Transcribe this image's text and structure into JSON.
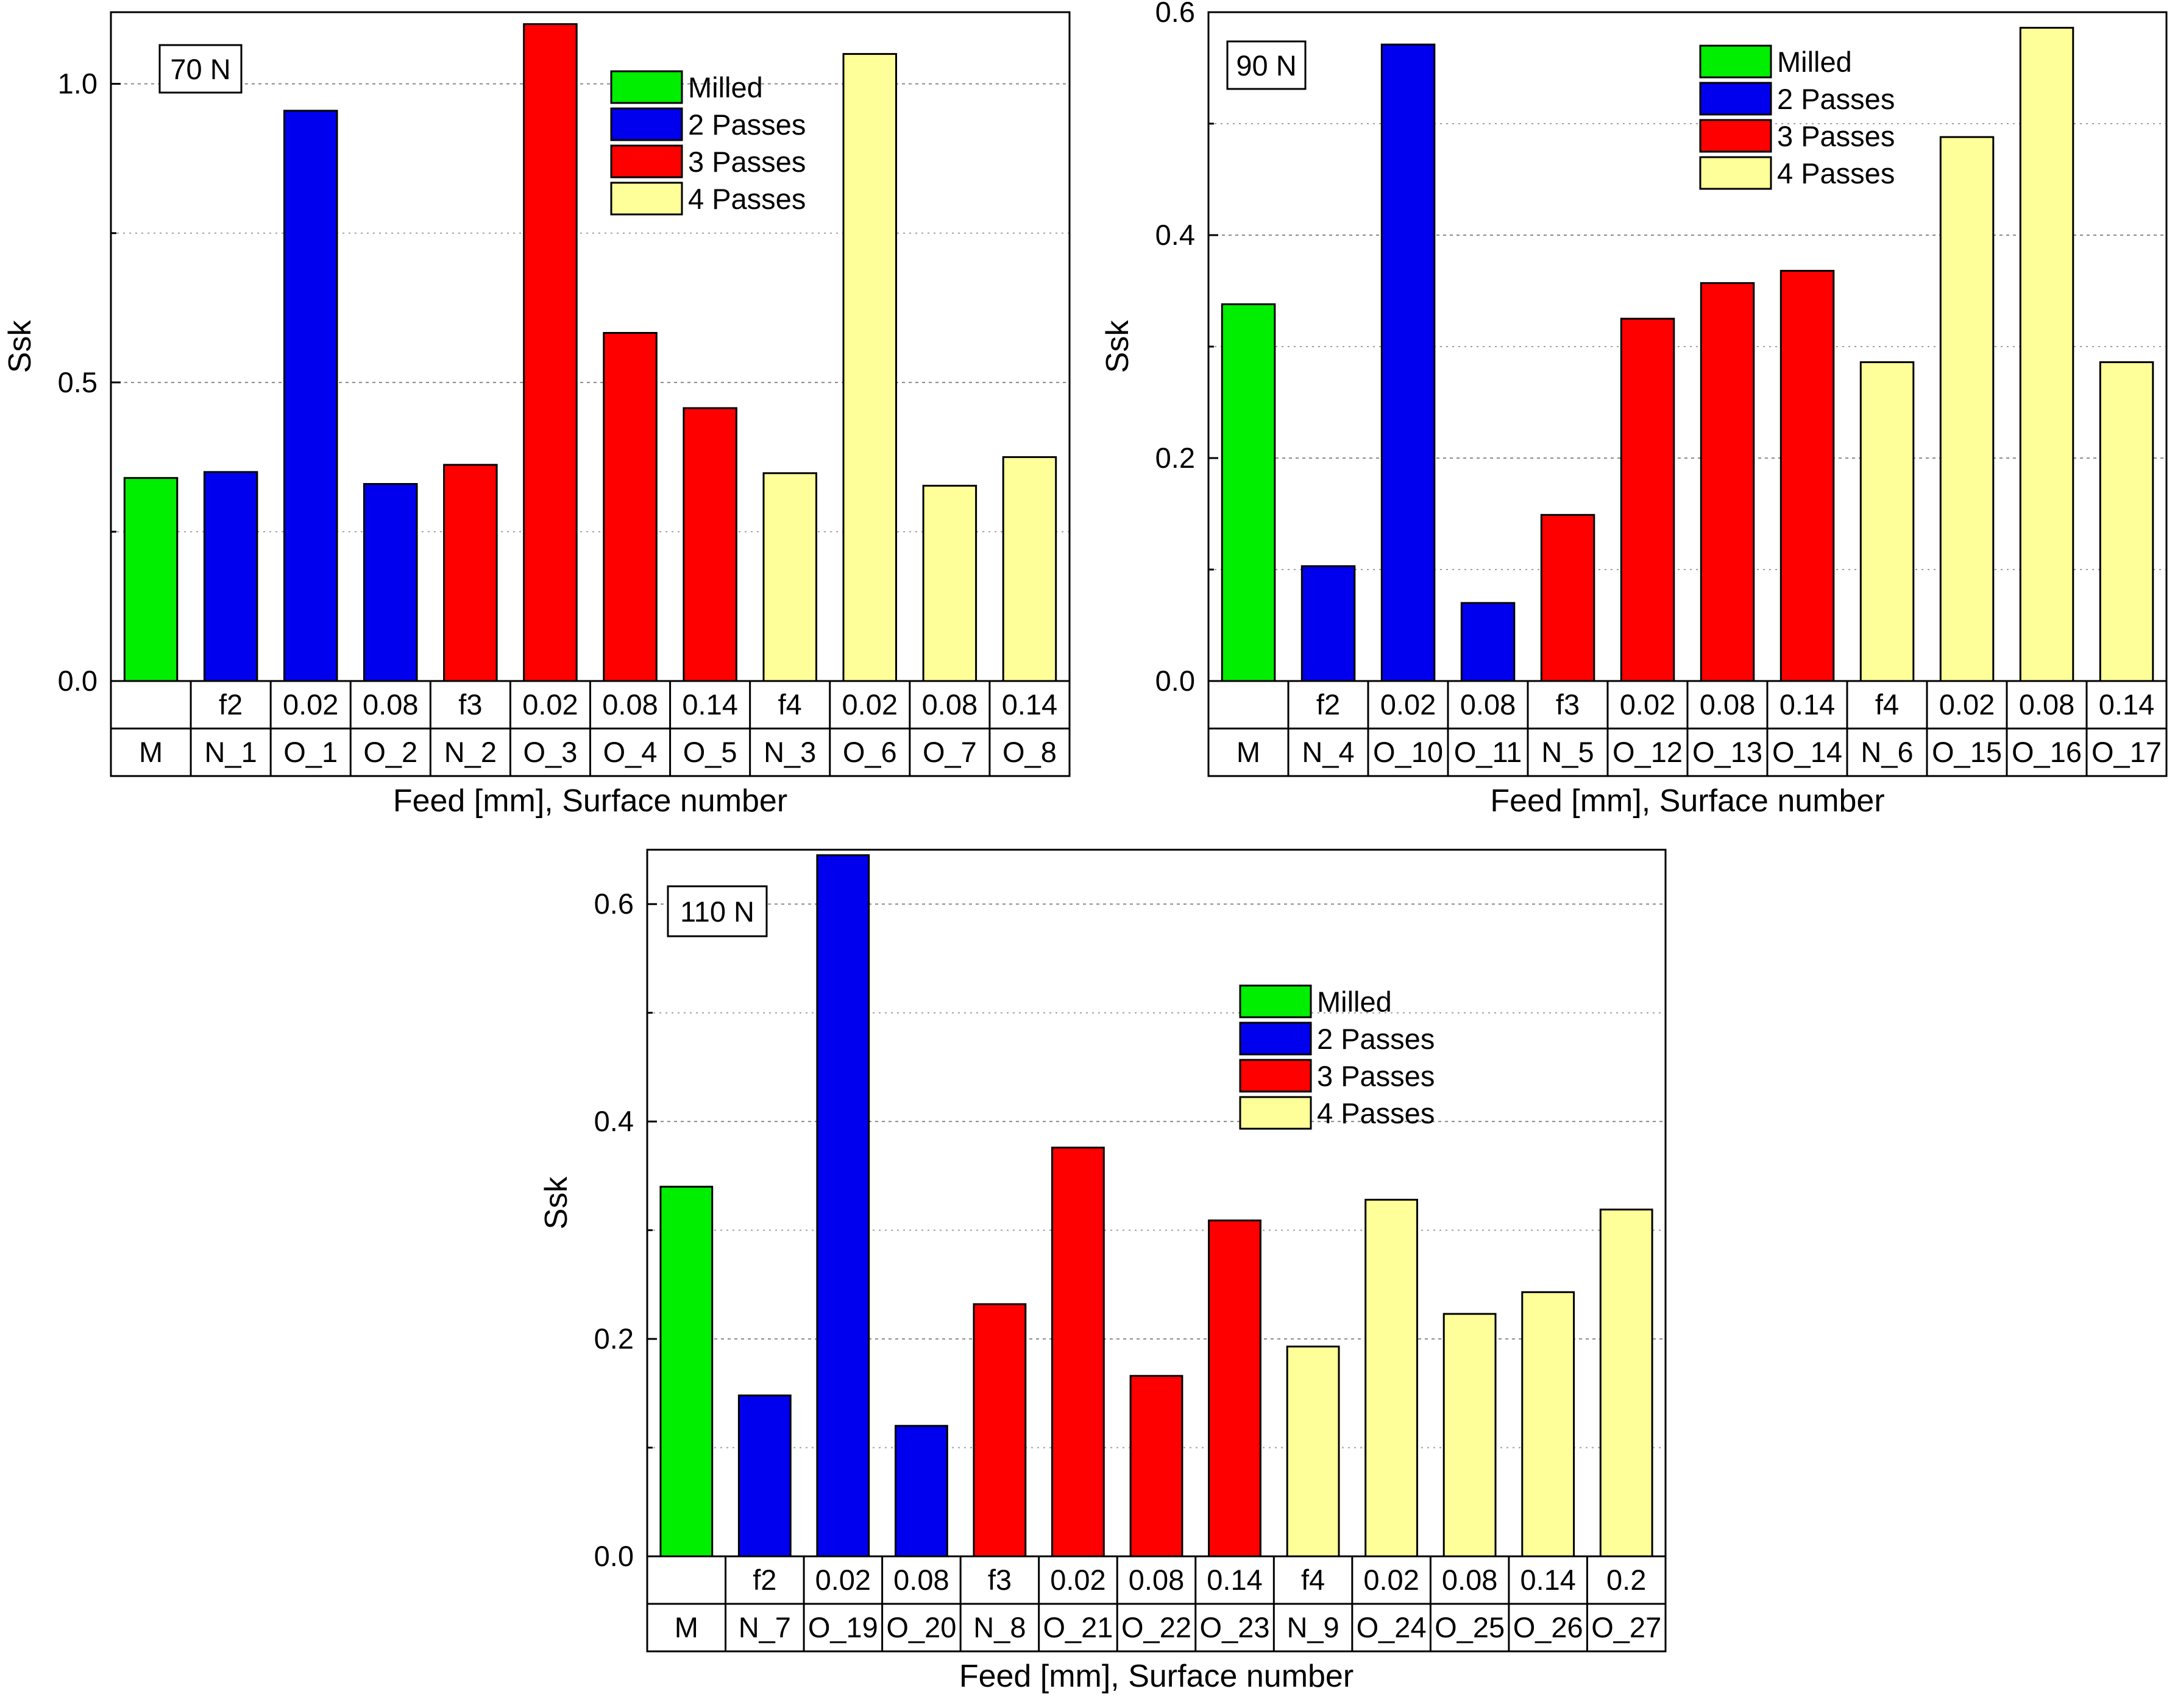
{
  "colors": {
    "Milled": "#00ee00",
    "2 Passes": "#0000ee",
    "3 Passes": "#ff0000",
    "4 Passes": "#ffff99"
  },
  "chart_data": [
    {
      "type": "bar",
      "title": "70 N",
      "ylabel": "Ssk",
      "xlabel": "Feed [mm], Surface number",
      "ylim": [
        0,
        1.12
      ],
      "yticks": [
        "0.0",
        "0.5",
        "1.0"
      ],
      "legend": [
        "Milled",
        "2 Passes",
        "3 Passes",
        "4 Passes"
      ],
      "legend_position": "top-right",
      "feed_labels": [
        "",
        "f2",
        "0.02",
        "0.08",
        "f3",
        "0.02",
        "0.08",
        "0.14",
        "f4",
        "0.02",
        "0.08",
        "0.14"
      ],
      "categories": [
        "M",
        "N_1",
        "O_1",
        "O_2",
        "N_2",
        "O_3",
        "O_4",
        "O_5",
        "N_3",
        "O_6",
        "O_7",
        "O_8"
      ],
      "groups": [
        "Milled",
        "2 Passes",
        "2 Passes",
        "2 Passes",
        "3 Passes",
        "3 Passes",
        "3 Passes",
        "3 Passes",
        "4 Passes",
        "4 Passes",
        "4 Passes",
        "4 Passes"
      ],
      "values": [
        0.34,
        0.35,
        0.955,
        0.33,
        0.362,
        1.1,
        0.583,
        0.457,
        0.348,
        1.05,
        0.327,
        0.375
      ]
    },
    {
      "type": "bar",
      "title": "90 N",
      "ylabel": "Ssk",
      "xlabel": "Feed [mm], Surface number",
      "ylim": [
        0,
        0.6
      ],
      "yticks": [
        "0.0",
        "0.2",
        "0.4",
        "0.6"
      ],
      "legend": [
        "Milled",
        "2 Passes",
        "3 Passes",
        "4 Passes"
      ],
      "legend_position": "top-right",
      "feed_labels": [
        "",
        "f2",
        "0.02",
        "0.08",
        "f3",
        "0.02",
        "0.08",
        "0.14",
        "f4",
        "0.02",
        "0.08",
        "0.14"
      ],
      "categories": [
        "M",
        "N_4",
        "O_10",
        "O_11",
        "N_5",
        "O_12",
        "O_13",
        "O_14",
        "N_6",
        "O_15",
        "O_16",
        "O_17"
      ],
      "groups": [
        "Milled",
        "2 Passes",
        "2 Passes",
        "2 Passes",
        "3 Passes",
        "3 Passes",
        "3 Passes",
        "3 Passes",
        "4 Passes",
        "4 Passes",
        "4 Passes",
        "4 Passes"
      ],
      "values": [
        0.338,
        0.103,
        0.571,
        0.07,
        0.149,
        0.325,
        0.357,
        0.368,
        0.286,
        0.488,
        0.586,
        0.286
      ]
    },
    {
      "type": "bar",
      "title": "110 N",
      "ylabel": "Ssk",
      "xlabel": "Feed [mm], Surface number",
      "ylim": [
        0,
        0.65
      ],
      "yticks": [
        "0.0",
        "0.2",
        "0.4",
        "0.6"
      ],
      "legend": [
        "Milled",
        "2 Passes",
        "3 Passes",
        "4 Passes"
      ],
      "legend_position": "top-right",
      "feed_labels": [
        "",
        "f2",
        "0.02",
        "0.08",
        "f3",
        "0.02",
        "0.08",
        "0.14",
        "f4",
        "0.02",
        "0.08",
        "0.14",
        "0.2"
      ],
      "categories": [
        "M",
        "N_7",
        "O_19",
        "O_20",
        "N_8",
        "O_21",
        "O_22",
        "O_23",
        "N_9",
        "O_24",
        "O_25",
        "O_26",
        "O_27"
      ],
      "groups": [
        "Milled",
        "2 Passes",
        "2 Passes",
        "2 Passes",
        "3 Passes",
        "3 Passes",
        "3 Passes",
        "3 Passes",
        "4 Passes",
        "4 Passes",
        "4 Passes",
        "4 Passes",
        "4 Passes"
      ],
      "values": [
        0.34,
        0.148,
        0.645,
        0.12,
        0.232,
        0.376,
        0.166,
        0.309,
        0.193,
        0.328,
        0.223,
        0.243,
        0.319
      ]
    }
  ]
}
